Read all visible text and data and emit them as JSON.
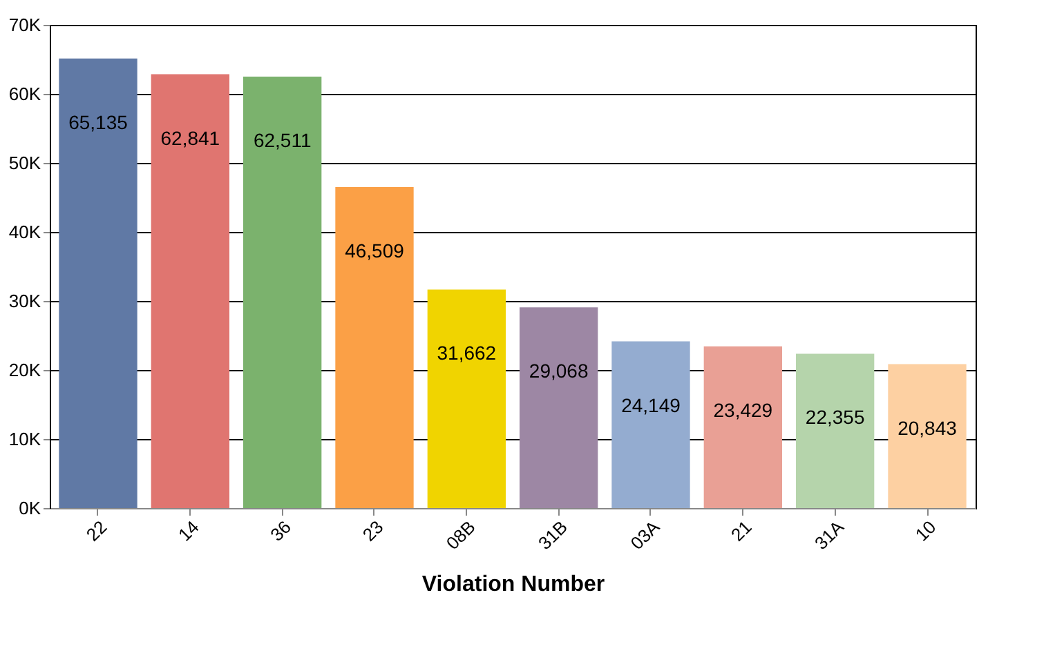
{
  "chart_data": {
    "type": "bar",
    "xlabel": "Violation Number",
    "categories": [
      "22",
      "14",
      "36",
      "23",
      "08B",
      "31B",
      "03A",
      "21",
      "31A",
      "10"
    ],
    "values": [
      65135,
      62841,
      62511,
      46509,
      31662,
      29068,
      24149,
      23429,
      22355,
      20843
    ],
    "colors": [
      "#6079a5",
      "#e07570",
      "#7bb26d",
      "#fba046",
      "#f0d400",
      "#9d87a4",
      "#94acd0",
      "#e9a095",
      "#b5d4ab",
      "#fdd0a2"
    ],
    "ylim": [
      0,
      70000
    ],
    "yticks": [
      {
        "value": 0,
        "label": "0K"
      },
      {
        "value": 10000,
        "label": "10K"
      },
      {
        "value": 20000,
        "label": "20K"
      },
      {
        "value": 30000,
        "label": "30K"
      },
      {
        "value": 40000,
        "label": "40K"
      },
      {
        "value": 50000,
        "label": "50K"
      },
      {
        "value": 60000,
        "label": "60K"
      },
      {
        "value": 70000,
        "label": "70K"
      }
    ],
    "value_labels": [
      "65,135",
      "62,841",
      "62,511",
      "46,509",
      "31,662",
      "29,068",
      "24,149",
      "23,429",
      "22,355",
      "20,843"
    ],
    "grid": "y"
  }
}
